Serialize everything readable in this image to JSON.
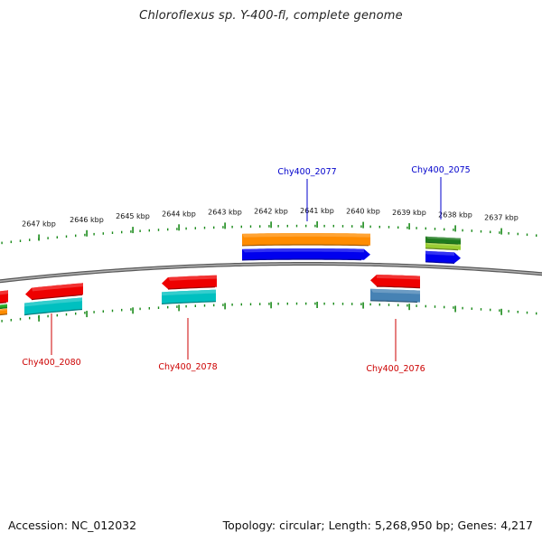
{
  "title": "Chloroflexus sp. Y-400-fl, complete genome",
  "footer": {
    "accession": "Accession: NC_012032",
    "summary": "Topology: circular; Length: 5,268,950 bp; Genes: 4,217"
  },
  "colors": {
    "backbone": "#808080",
    "tick": "#1a8a1a",
    "label_forward": "#0000cc",
    "label_reverse": "#cc0000"
  },
  "ticks": [
    "2647 kbp",
    "2646 kbp",
    "2645 kbp",
    "2644 kbp",
    "2643 kbp",
    "2642 kbp",
    "2641 kbp",
    "2640 kbp",
    "2639 kbp",
    "2638 kbp",
    "2637 kbp"
  ],
  "gene_labels": [
    {
      "id": "Chy400_2077",
      "strand": "forward"
    },
    {
      "id": "Chy400_2075",
      "strand": "forward"
    },
    {
      "id": "Chy400_2080",
      "strand": "reverse"
    },
    {
      "id": "Chy400_2078",
      "strand": "reverse"
    },
    {
      "id": "Chy400_2076",
      "strand": "reverse"
    }
  ],
  "features": [
    {
      "name": "forward-cds-2077",
      "color": "#0000ee",
      "direction": "right"
    },
    {
      "name": "forward-bar-2077",
      "color": "#ff8c00",
      "direction": "none"
    },
    {
      "name": "forward-cds-2075",
      "color": "#0000ee",
      "direction": "right"
    },
    {
      "name": "forward-bar-2075-green",
      "color": "#1e7a1e",
      "direction": "none"
    },
    {
      "name": "forward-bar-2075-lime",
      "color": "#9acd32",
      "direction": "none"
    },
    {
      "name": "reverse-cds-2080",
      "color": "#ee0000",
      "direction": "left"
    },
    {
      "name": "reverse-bar-2080",
      "color": "#00c0c0",
      "direction": "none"
    },
    {
      "name": "reverse-cds-2078",
      "color": "#ee0000",
      "direction": "left"
    },
    {
      "name": "reverse-bar-2078",
      "color": "#00c0c0",
      "direction": "none"
    },
    {
      "name": "reverse-cds-2076",
      "color": "#ee0000",
      "direction": "left"
    },
    {
      "name": "reverse-bar-2076",
      "color": "#4682b4",
      "direction": "none"
    },
    {
      "name": "edge-red",
      "color": "#ee0000",
      "direction": "left"
    },
    {
      "name": "edge-green",
      "color": "#22aa22",
      "direction": "none"
    },
    {
      "name": "edge-orange",
      "color": "#ff8c00",
      "direction": "none"
    }
  ]
}
